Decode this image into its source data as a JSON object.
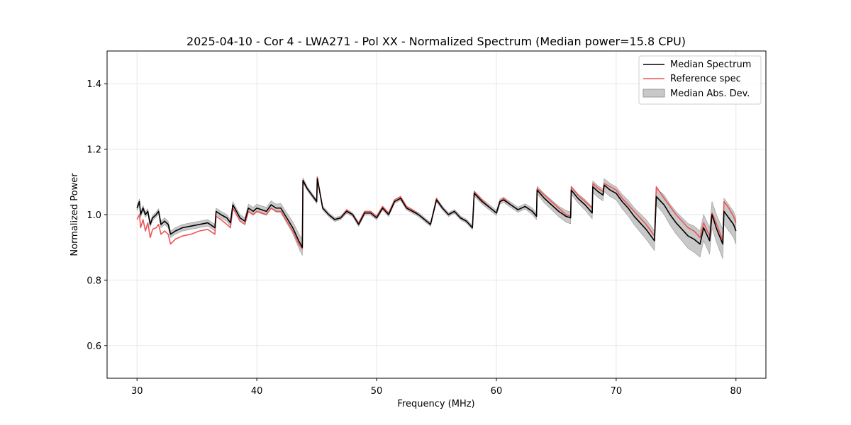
{
  "chart_data": {
    "type": "line",
    "title": "2025-04-10 - Cor 4 - LWA271 - Pol XX - Normalized Spectrum (Median power=15.8 CPU)",
    "xlabel": "Frequency (MHz)",
    "ylabel": "Normalized Power",
    "xlim": [
      27.5,
      82.5
    ],
    "ylim": [
      0.5,
      1.5
    ],
    "xticks": [
      30,
      40,
      50,
      60,
      70,
      80
    ],
    "yticks": [
      0.6,
      0.8,
      1.0,
      1.2,
      1.4
    ],
    "xtick_labels": [
      "30",
      "40",
      "50",
      "60",
      "70",
      "80"
    ],
    "ytick_labels": [
      "0.6",
      "0.8",
      "1.0",
      "1.2",
      "1.4"
    ],
    "grid": true,
    "legend_position": "top-right",
    "colors": {
      "median": "#000000",
      "reference": "#ee5555",
      "mad_fill": "#c8c8c8",
      "mad_edge": "#999999",
      "grid": "#e6e6e6"
    },
    "legend": [
      {
        "label": "Median Spectrum",
        "kind": "line",
        "color": "#000000"
      },
      {
        "label": "Reference spec",
        "kind": "line",
        "color": "#ee5555"
      },
      {
        "label": "Median Abs. Dev.",
        "kind": "patch",
        "color": "#c8c8c8"
      }
    ],
    "series": [
      {
        "name": "Median Spectrum",
        "x": [
          30.0,
          30.2,
          30.3,
          30.5,
          30.7,
          30.9,
          31.1,
          31.3,
          31.6,
          31.8,
          32.0,
          32.3,
          32.6,
          32.8,
          33.2,
          33.8,
          34.5,
          35.2,
          35.9,
          36.5,
          36.6,
          37.0,
          37.5,
          37.8,
          38.0,
          38.3,
          38.6,
          39.0,
          39.3,
          39.7,
          40.0,
          40.4,
          40.8,
          41.2,
          41.6,
          42.0,
          42.5,
          43.0,
          43.5,
          43.8,
          43.85,
          44.2,
          44.6,
          45.0,
          45.05,
          45.5,
          46.0,
          46.5,
          47.0,
          47.5,
          48.0,
          48.5,
          49.0,
          49.5,
          50.0,
          50.5,
          51.0,
          51.5,
          52.0,
          52.5,
          53.0,
          53.5,
          54.0,
          54.5,
          55.0,
          55.5,
          56.0,
          56.5,
          57.0,
          57.5,
          58.0,
          58.15,
          58.8,
          59.5,
          60.0,
          60.3,
          60.6,
          61.2,
          61.8,
          62.4,
          63.0,
          63.35,
          63.4,
          64.0,
          64.6,
          65.2,
          65.8,
          66.2,
          66.25,
          66.8,
          67.4,
          68.0,
          68.05,
          68.5,
          68.9,
          69.0,
          69.5,
          70.0,
          70.5,
          71.0,
          71.5,
          72.0,
          72.5,
          73.2,
          73.35,
          74.0,
          74.5,
          75.0,
          75.5,
          76.0,
          76.5,
          77.0,
          77.3,
          77.8,
          78.0,
          78.4,
          78.9,
          79.0,
          79.4,
          79.8,
          80.0
        ],
        "values": [
          1.02,
          1.04,
          1.0,
          1.02,
          1.0,
          1.01,
          0.97,
          0.99,
          1.0,
          1.01,
          0.97,
          0.98,
          0.97,
          0.94,
          0.95,
          0.96,
          0.965,
          0.97,
          0.975,
          0.96,
          1.01,
          1.0,
          0.99,
          0.975,
          1.03,
          1.01,
          0.99,
          0.98,
          1.02,
          1.01,
          1.02,
          1.015,
          1.01,
          1.03,
          1.02,
          1.02,
          0.99,
          0.96,
          0.92,
          0.9,
          1.105,
          1.08,
          1.06,
          1.04,
          1.11,
          1.02,
          1.0,
          0.985,
          0.99,
          1.01,
          1.0,
          0.97,
          1.005,
          1.005,
          0.99,
          1.02,
          1.0,
          1.04,
          1.05,
          1.02,
          1.01,
          1.0,
          0.985,
          0.97,
          1.045,
          1.02,
          1.0,
          1.01,
          0.99,
          0.98,
          0.96,
          1.065,
          1.04,
          1.02,
          1.005,
          1.04,
          1.045,
          1.03,
          1.015,
          1.025,
          1.01,
          0.995,
          1.075,
          1.05,
          1.03,
          1.01,
          0.995,
          0.99,
          1.075,
          1.05,
          1.03,
          1.005,
          1.085,
          1.07,
          1.06,
          1.09,
          1.075,
          1.065,
          1.04,
          1.02,
          0.995,
          0.975,
          0.955,
          0.92,
          1.055,
          1.03,
          1.0,
          0.975,
          0.955,
          0.935,
          0.925,
          0.91,
          0.96,
          0.92,
          1.0,
          0.955,
          0.91,
          1.01,
          0.99,
          0.97,
          0.95
        ]
      },
      {
        "name": "Reference spec",
        "x": [
          30.0,
          30.2,
          30.3,
          30.5,
          30.7,
          30.9,
          31.1,
          31.3,
          31.6,
          31.8,
          32.0,
          32.3,
          32.6,
          32.8,
          33.2,
          33.8,
          34.5,
          35.2,
          35.9,
          36.5,
          36.6,
          37.0,
          37.5,
          37.8,
          38.0,
          38.3,
          38.6,
          39.0,
          39.3,
          39.7,
          40.0,
          40.4,
          40.8,
          41.2,
          41.6,
          42.0,
          42.5,
          43.0,
          43.5,
          43.8,
          43.85,
          44.2,
          44.6,
          45.0,
          45.05,
          45.5,
          46.0,
          46.5,
          47.0,
          47.5,
          48.0,
          48.5,
          49.0,
          49.5,
          50.0,
          50.5,
          51.0,
          51.5,
          52.0,
          52.5,
          53.0,
          53.5,
          54.0,
          54.5,
          55.0,
          55.5,
          56.0,
          56.5,
          57.0,
          57.5,
          58.0,
          58.15,
          58.8,
          59.5,
          60.0,
          60.3,
          60.6,
          61.2,
          61.8,
          62.4,
          63.0,
          63.35,
          63.4,
          64.0,
          64.6,
          65.2,
          65.8,
          66.2,
          66.25,
          66.8,
          67.4,
          68.0,
          68.05,
          68.5,
          68.9,
          69.0,
          69.5,
          70.0,
          70.5,
          71.0,
          71.5,
          72.0,
          72.5,
          73.2,
          73.35,
          74.0,
          74.5,
          75.0,
          75.5,
          76.0,
          76.5,
          77.0,
          77.3,
          77.8,
          78.0,
          78.4,
          78.9,
          79.0,
          79.4,
          79.8,
          80.0
        ],
        "values": [
          0.985,
          1.0,
          0.96,
          0.985,
          0.95,
          0.975,
          0.93,
          0.955,
          0.96,
          0.97,
          0.94,
          0.95,
          0.94,
          0.91,
          0.925,
          0.935,
          0.94,
          0.95,
          0.955,
          0.94,
          0.995,
          0.985,
          0.97,
          0.96,
          1.02,
          1.0,
          0.98,
          0.97,
          1.01,
          1.0,
          1.01,
          1.005,
          1.0,
          1.02,
          1.01,
          1.01,
          0.98,
          0.95,
          0.91,
          0.895,
          1.1,
          1.08,
          1.06,
          1.04,
          1.115,
          1.02,
          1.0,
          0.985,
          0.99,
          1.015,
          1.0,
          0.975,
          1.01,
          1.01,
          0.995,
          1.025,
          1.005,
          1.045,
          1.055,
          1.025,
          1.015,
          1.0,
          0.985,
          0.97,
          1.05,
          1.02,
          1.0,
          1.01,
          0.99,
          0.98,
          0.96,
          1.07,
          1.045,
          1.02,
          1.005,
          1.04,
          1.05,
          1.03,
          1.015,
          1.025,
          1.01,
          0.995,
          1.08,
          1.06,
          1.04,
          1.02,
          1.0,
          0.995,
          1.085,
          1.06,
          1.04,
          1.02,
          1.095,
          1.08,
          1.07,
          1.095,
          1.085,
          1.075,
          1.05,
          1.03,
          1.01,
          0.99,
          0.97,
          0.935,
          1.085,
          1.05,
          1.025,
          1.0,
          0.98,
          0.96,
          0.95,
          0.93,
          0.975,
          0.935,
          1.005,
          0.97,
          0.92,
          1.04,
          1.02,
          0.995,
          0.975
        ]
      },
      {
        "name": "Median Abs. Dev.",
        "x": [
          30.0,
          30.2,
          30.3,
          30.5,
          30.7,
          30.9,
          31.1,
          31.3,
          31.6,
          31.8,
          32.0,
          32.3,
          32.6,
          32.8,
          33.2,
          33.8,
          34.5,
          35.2,
          35.9,
          36.5,
          36.6,
          37.0,
          37.5,
          37.8,
          38.0,
          38.3,
          38.6,
          39.0,
          39.3,
          39.7,
          40.0,
          40.4,
          40.8,
          41.2,
          41.6,
          42.0,
          42.5,
          43.0,
          43.5,
          43.8,
          43.85,
          44.2,
          44.6,
          45.0,
          45.05,
          45.5,
          46.0,
          46.5,
          47.0,
          47.5,
          48.0,
          48.5,
          49.0,
          49.5,
          50.0,
          50.5,
          51.0,
          51.5,
          52.0,
          52.5,
          53.0,
          53.5,
          54.0,
          54.5,
          55.0,
          55.5,
          56.0,
          56.5,
          57.0,
          57.5,
          58.0,
          58.15,
          58.8,
          59.5,
          60.0,
          60.3,
          60.6,
          61.2,
          61.8,
          62.4,
          63.0,
          63.35,
          63.4,
          64.0,
          64.6,
          65.2,
          65.8,
          66.2,
          66.25,
          66.8,
          67.4,
          68.0,
          68.05,
          68.5,
          68.9,
          69.0,
          69.5,
          70.0,
          70.5,
          71.0,
          71.5,
          72.0,
          72.5,
          73.2,
          73.35,
          74.0,
          74.5,
          75.0,
          75.5,
          76.0,
          76.5,
          77.0,
          77.3,
          77.8,
          78.0,
          78.4,
          78.9,
          79.0,
          79.4,
          79.8,
          80.0
        ],
        "dev": [
          0.008,
          0.008,
          0.008,
          0.008,
          0.008,
          0.008,
          0.008,
          0.008,
          0.008,
          0.008,
          0.01,
          0.01,
          0.01,
          0.01,
          0.01,
          0.01,
          0.01,
          0.01,
          0.01,
          0.01,
          0.01,
          0.01,
          0.01,
          0.01,
          0.01,
          0.01,
          0.01,
          0.01,
          0.012,
          0.012,
          0.012,
          0.012,
          0.012,
          0.012,
          0.012,
          0.014,
          0.016,
          0.018,
          0.022,
          0.025,
          0.008,
          0.006,
          0.006,
          0.006,
          0.006,
          0.006,
          0.006,
          0.006,
          0.006,
          0.006,
          0.006,
          0.006,
          0.006,
          0.006,
          0.006,
          0.006,
          0.006,
          0.006,
          0.006,
          0.006,
          0.006,
          0.006,
          0.006,
          0.006,
          0.006,
          0.006,
          0.006,
          0.006,
          0.006,
          0.006,
          0.006,
          0.008,
          0.008,
          0.008,
          0.008,
          0.008,
          0.008,
          0.008,
          0.008,
          0.008,
          0.01,
          0.01,
          0.012,
          0.014,
          0.015,
          0.016,
          0.018,
          0.018,
          0.012,
          0.014,
          0.016,
          0.018,
          0.018,
          0.018,
          0.018,
          0.02,
          0.02,
          0.02,
          0.022,
          0.024,
          0.026,
          0.028,
          0.03,
          0.03,
          0.025,
          0.03,
          0.032,
          0.034,
          0.036,
          0.038,
          0.04,
          0.04,
          0.04,
          0.04,
          0.04,
          0.042,
          0.045,
          0.04,
          0.04,
          0.04,
          0.04
        ]
      }
    ]
  }
}
